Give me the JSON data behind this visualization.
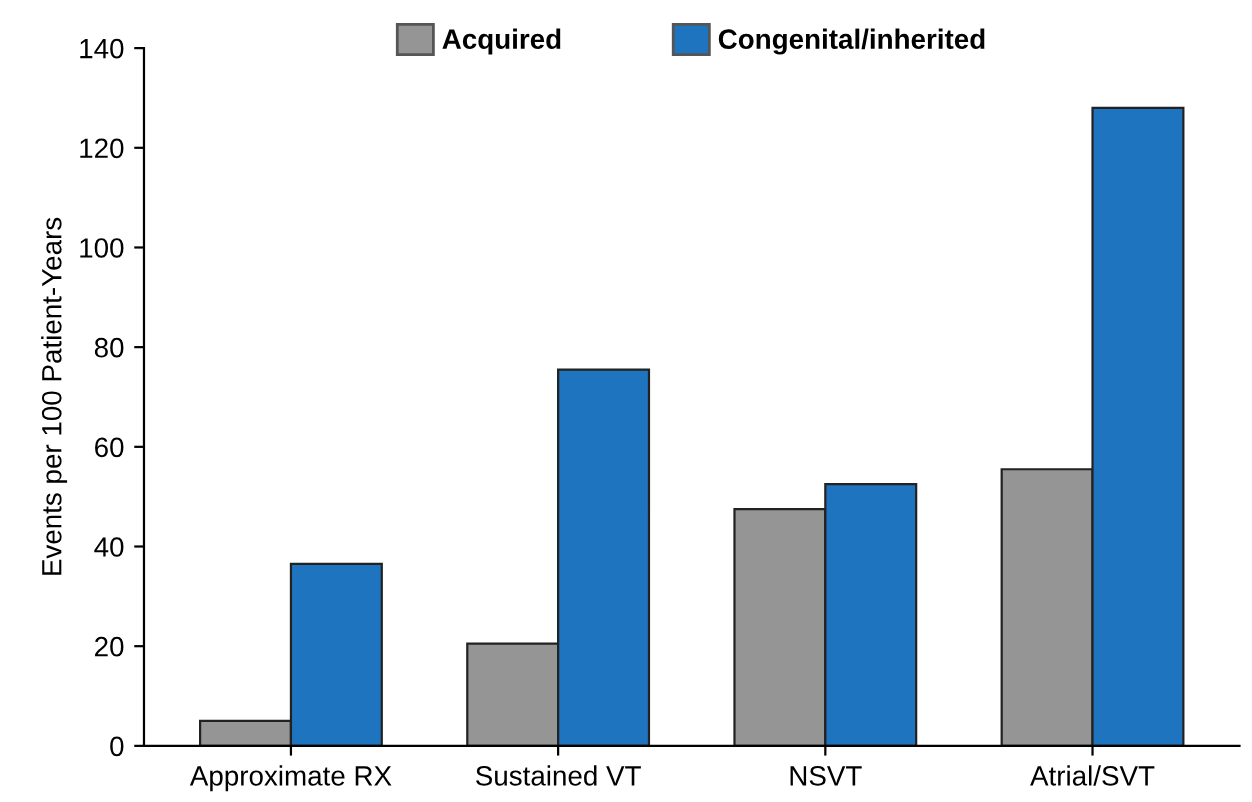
{
  "chart_data": {
    "type": "bar",
    "ylabel": "Events per 100 Patient-Years",
    "categories": [
      "Approximate RX",
      "Sustained VT",
      "NSVT",
      "Atrial/SVT"
    ],
    "series": [
      {
        "name": "Acquired",
        "color": "#959595",
        "values": [
          5,
          20.5,
          47.5,
          55.5
        ]
      },
      {
        "name": "Congenital/inherited",
        "color": "#1f74bf",
        "values": [
          36.5,
          75.5,
          52.5,
          128
        ]
      }
    ],
    "ylim": [
      0,
      140
    ],
    "yticks": [
      0,
      20,
      40,
      60,
      80,
      100,
      120,
      140
    ],
    "grid": false,
    "legend": "top"
  }
}
